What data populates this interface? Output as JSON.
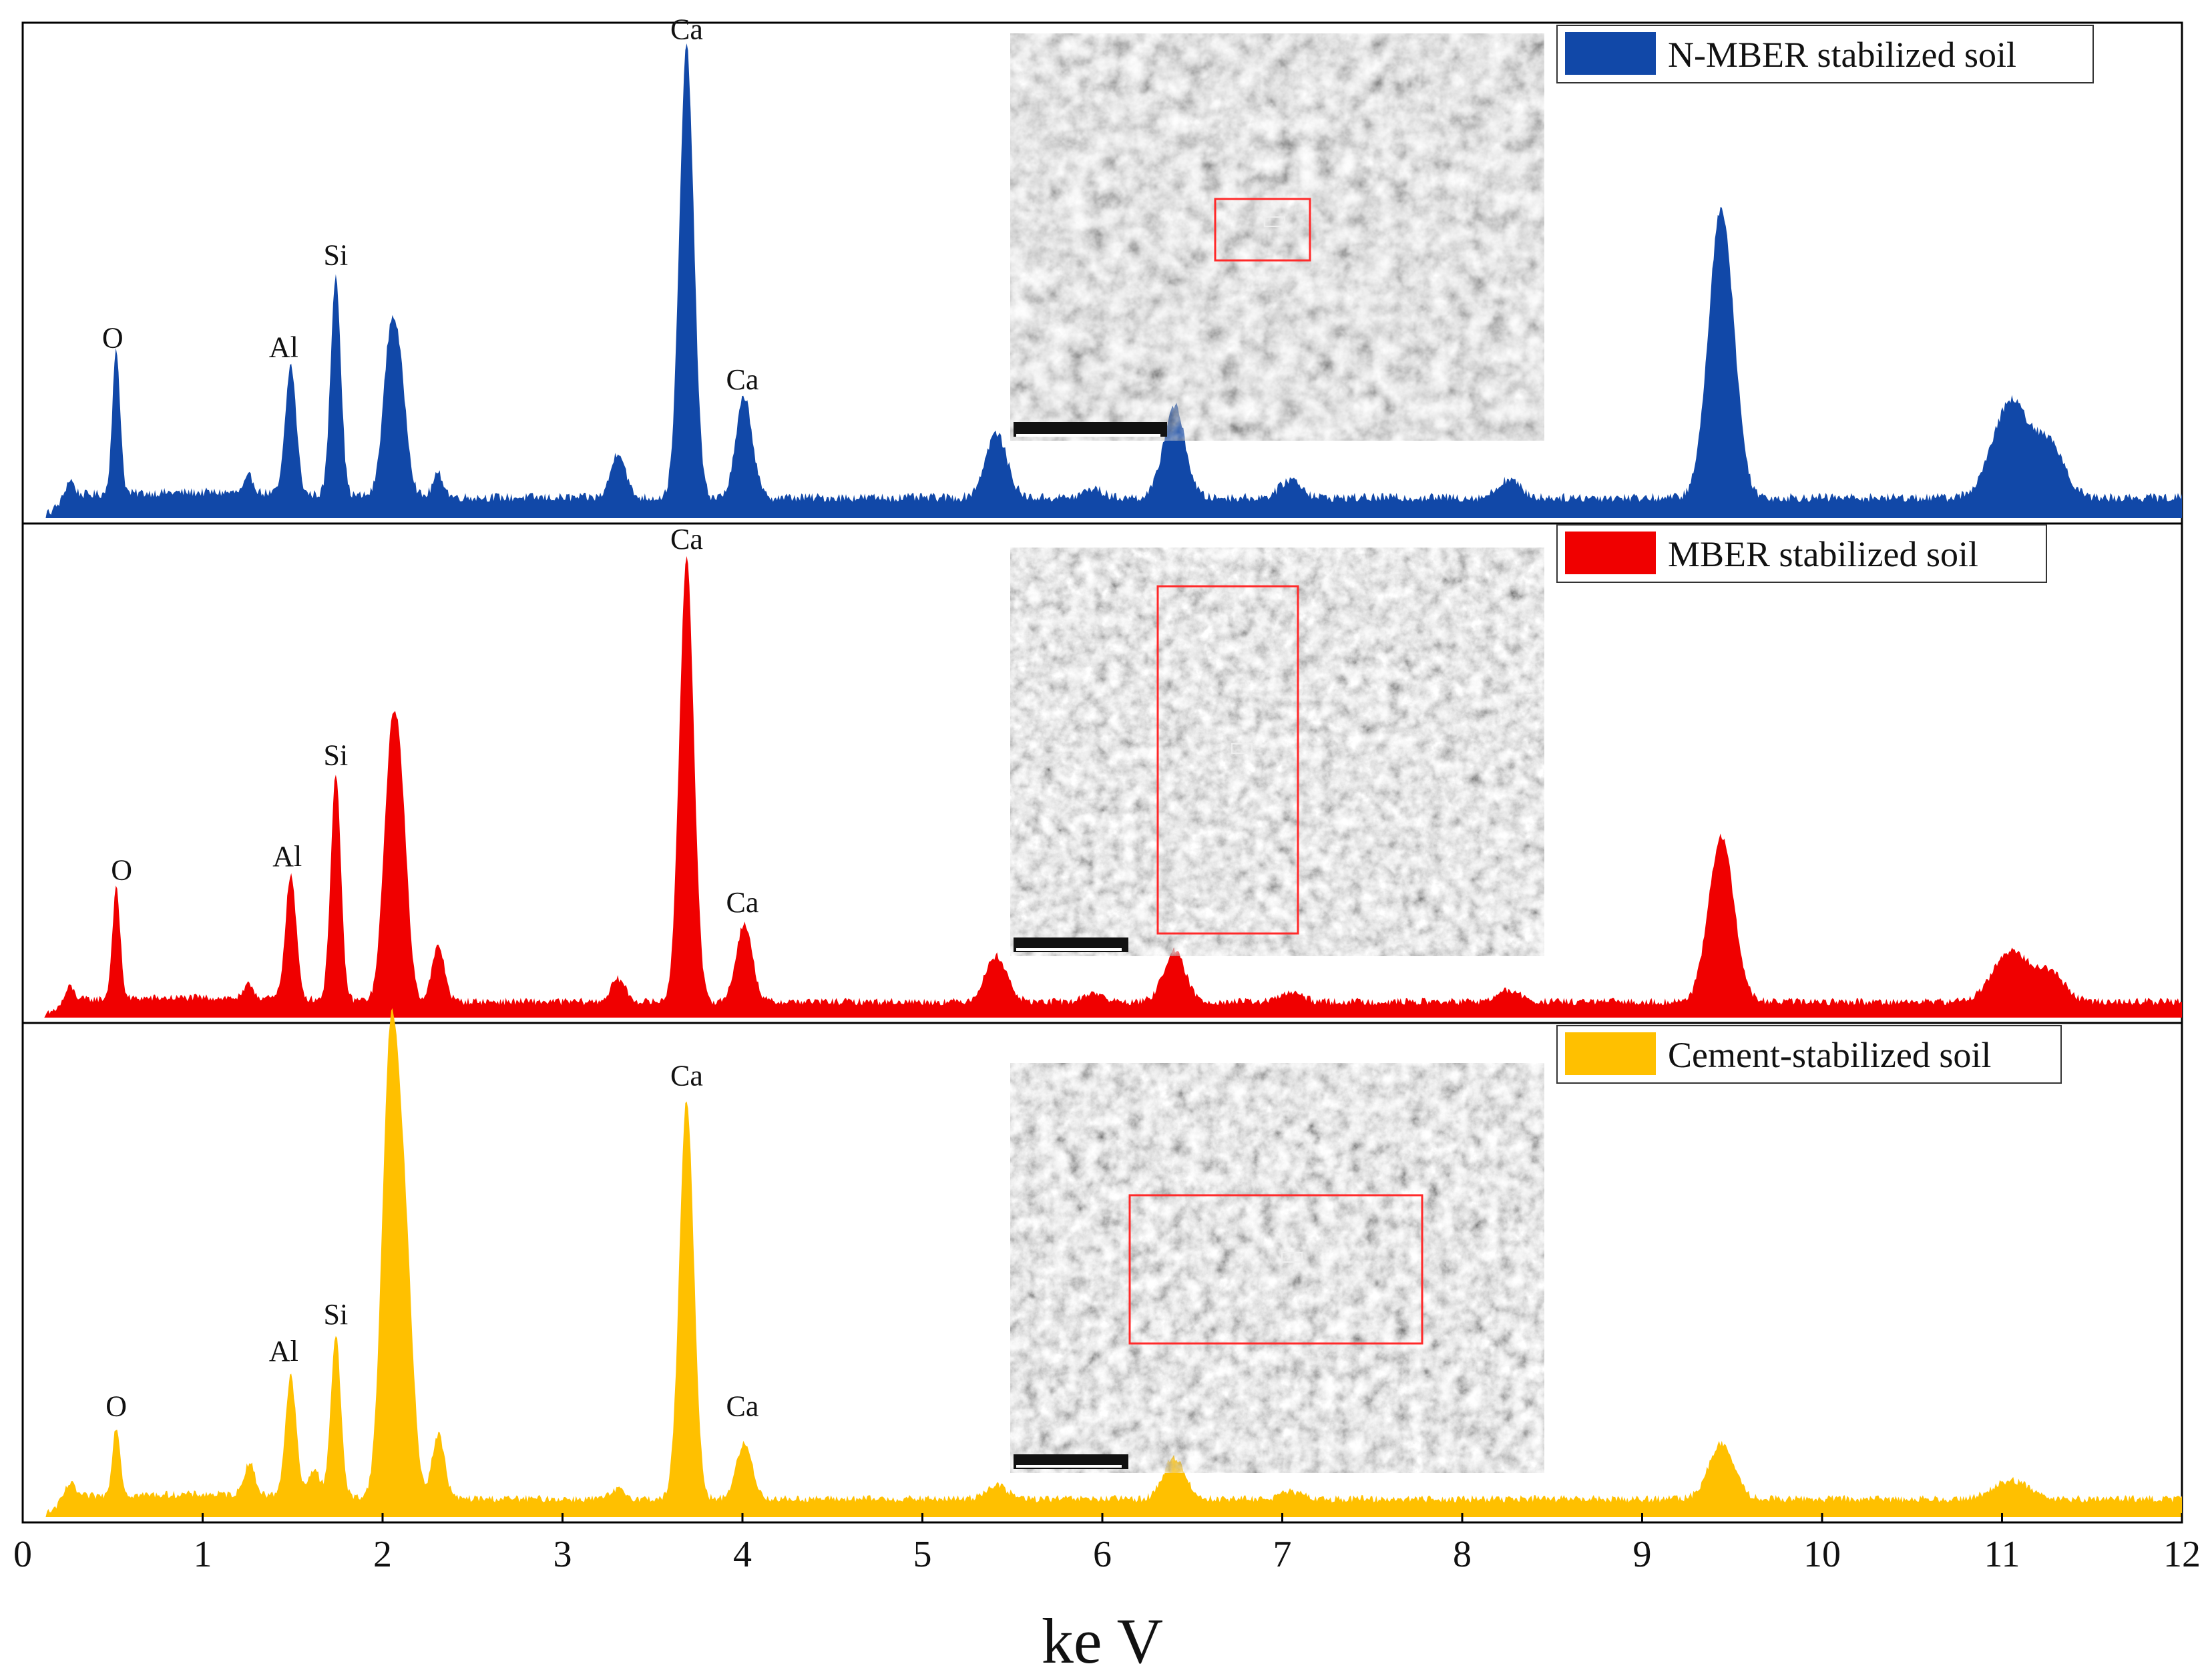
{
  "chart_data": {
    "type": "area",
    "title": "",
    "xlabel": "ke V",
    "ylabel": "",
    "xlim": [
      0,
      12
    ],
    "xticks": [
      0,
      1,
      2,
      3,
      4,
      5,
      6,
      7,
      8,
      9,
      10,
      11,
      12
    ],
    "grid": false,
    "legend_placement": "top-right of each panel",
    "panels": [
      {
        "name": "N-MBER stabilized soil",
        "legend": "N-MBER stabilized soil",
        "color": "#1148A8",
        "inset": "SEM micrograph (5 um scale bar) with red selection box",
        "ymax": 1.0,
        "baseline": 0.045,
        "noise": 0.01,
        "peaks": [
          {
            "x": 0.26,
            "h": 0.035,
            "w": 0.025
          },
          {
            "x": 0.52,
            "h": 0.31,
            "w": 0.022
          },
          {
            "x": 1.26,
            "h": 0.035,
            "w": 0.025
          },
          {
            "x": 1.49,
            "h": 0.28,
            "w": 0.03
          },
          {
            "x": 1.74,
            "h": 0.48,
            "w": 0.028
          },
          {
            "x": 2.04,
            "h": 0.3,
            "w": 0.04
          },
          {
            "x": 2.1,
            "h": 0.21,
            "w": 0.04
          },
          {
            "x": 2.31,
            "h": 0.05,
            "w": 0.03
          },
          {
            "x": 3.31,
            "h": 0.1,
            "w": 0.04
          },
          {
            "x": 3.69,
            "h": 0.98,
            "w": 0.04
          },
          {
            "x": 4.01,
            "h": 0.22,
            "w": 0.045
          },
          {
            "x": 5.41,
            "h": 0.14,
            "w": 0.06
          },
          {
            "x": 5.95,
            "h": 0.02,
            "w": 0.05
          },
          {
            "x": 6.4,
            "h": 0.2,
            "w": 0.06
          },
          {
            "x": 7.05,
            "h": 0.04,
            "w": 0.06
          },
          {
            "x": 8.26,
            "h": 0.04,
            "w": 0.06
          },
          {
            "x": 9.44,
            "h": 0.63,
            "w": 0.07
          },
          {
            "x": 11.05,
            "h": 0.21,
            "w": 0.1
          },
          {
            "x": 11.27,
            "h": 0.11,
            "w": 0.08
          }
        ],
        "labels": [
          {
            "text": "O",
            "x": 0.5,
            "y": 0.37
          },
          {
            "text": "Al",
            "x": 1.45,
            "y": 0.35
          },
          {
            "text": "Si",
            "x": 1.74,
            "y": 0.55
          },
          {
            "text": "Ca",
            "x": 3.69,
            "y": 1.04
          },
          {
            "text": "Ca",
            "x": 4.0,
            "y": 0.28
          }
        ]
      },
      {
        "name": "MBER stabilized soil",
        "legend": "MBER stabilized soil",
        "color": "#F00000",
        "inset": "SEM micrograph (2 um scale bar) with red selection box",
        "ymax": 1.0,
        "baseline": 0.035,
        "noise": 0.008,
        "peaks": [
          {
            "x": 0.26,
            "h": 0.03,
            "w": 0.025
          },
          {
            "x": 0.52,
            "h": 0.24,
            "w": 0.022
          },
          {
            "x": 1.26,
            "h": 0.03,
            "w": 0.025
          },
          {
            "x": 1.49,
            "h": 0.27,
            "w": 0.03
          },
          {
            "x": 1.74,
            "h": 0.49,
            "w": 0.028
          },
          {
            "x": 2.04,
            "h": 0.44,
            "w": 0.04
          },
          {
            "x": 2.1,
            "h": 0.4,
            "w": 0.04
          },
          {
            "x": 2.31,
            "h": 0.12,
            "w": 0.035
          },
          {
            "x": 3.31,
            "h": 0.05,
            "w": 0.04
          },
          {
            "x": 3.69,
            "h": 0.97,
            "w": 0.04
          },
          {
            "x": 4.01,
            "h": 0.17,
            "w": 0.045
          },
          {
            "x": 5.41,
            "h": 0.1,
            "w": 0.06
          },
          {
            "x": 5.95,
            "h": 0.02,
            "w": 0.05
          },
          {
            "x": 6.4,
            "h": 0.11,
            "w": 0.06
          },
          {
            "x": 7.05,
            "h": 0.02,
            "w": 0.06
          },
          {
            "x": 8.26,
            "h": 0.025,
            "w": 0.06
          },
          {
            "x": 9.44,
            "h": 0.36,
            "w": 0.07
          },
          {
            "x": 11.05,
            "h": 0.11,
            "w": 0.1
          },
          {
            "x": 11.27,
            "h": 0.06,
            "w": 0.08
          }
        ],
        "labels": [
          {
            "text": "O",
            "x": 0.55,
            "y": 0.3
          },
          {
            "text": "Al",
            "x": 1.47,
            "y": 0.33
          },
          {
            "text": "Si",
            "x": 1.74,
            "y": 0.55
          },
          {
            "text": "Ca",
            "x": 3.69,
            "y": 1.02
          },
          {
            "text": "Ca",
            "x": 4.0,
            "y": 0.23
          }
        ]
      },
      {
        "name": "Cement-stabilized soil",
        "legend": "Cement-stabilized soil",
        "color": "#FFC000",
        "inset": "SEM micrograph (2 um scale bar) with red selection box",
        "ymax": 1.0,
        "baseline": 0.04,
        "noise": 0.008,
        "peaks": [
          {
            "x": 0.26,
            "h": 0.03,
            "w": 0.03
          },
          {
            "x": 0.52,
            "h": 0.15,
            "w": 0.022
          },
          {
            "x": 1.26,
            "h": 0.07,
            "w": 0.03
          },
          {
            "x": 1.49,
            "h": 0.26,
            "w": 0.03
          },
          {
            "x": 1.62,
            "h": 0.06,
            "w": 0.03
          },
          {
            "x": 1.74,
            "h": 0.35,
            "w": 0.028
          },
          {
            "x": 2.04,
            "h": 0.92,
            "w": 0.045
          },
          {
            "x": 2.12,
            "h": 0.55,
            "w": 0.045
          },
          {
            "x": 2.31,
            "h": 0.14,
            "w": 0.035
          },
          {
            "x": 3.31,
            "h": 0.02,
            "w": 0.04
          },
          {
            "x": 3.69,
            "h": 0.87,
            "w": 0.04
          },
          {
            "x": 4.01,
            "h": 0.12,
            "w": 0.045
          },
          {
            "x": 5.41,
            "h": 0.03,
            "w": 0.06
          },
          {
            "x": 6.4,
            "h": 0.09,
            "w": 0.06
          },
          {
            "x": 7.05,
            "h": 0.015,
            "w": 0.06
          },
          {
            "x": 9.44,
            "h": 0.12,
            "w": 0.07
          },
          {
            "x": 11.05,
            "h": 0.04,
            "w": 0.1
          }
        ],
        "labels": [
          {
            "text": "O",
            "x": 0.52,
            "y": 0.22
          },
          {
            "text": "Al",
            "x": 1.45,
            "y": 0.34
          },
          {
            "text": "Si",
            "x": 1.74,
            "y": 0.42
          },
          {
            "text": "Ca",
            "x": 3.69,
            "y": 0.94
          },
          {
            "text": "Ca",
            "x": 4.0,
            "y": 0.22
          }
        ]
      }
    ]
  }
}
